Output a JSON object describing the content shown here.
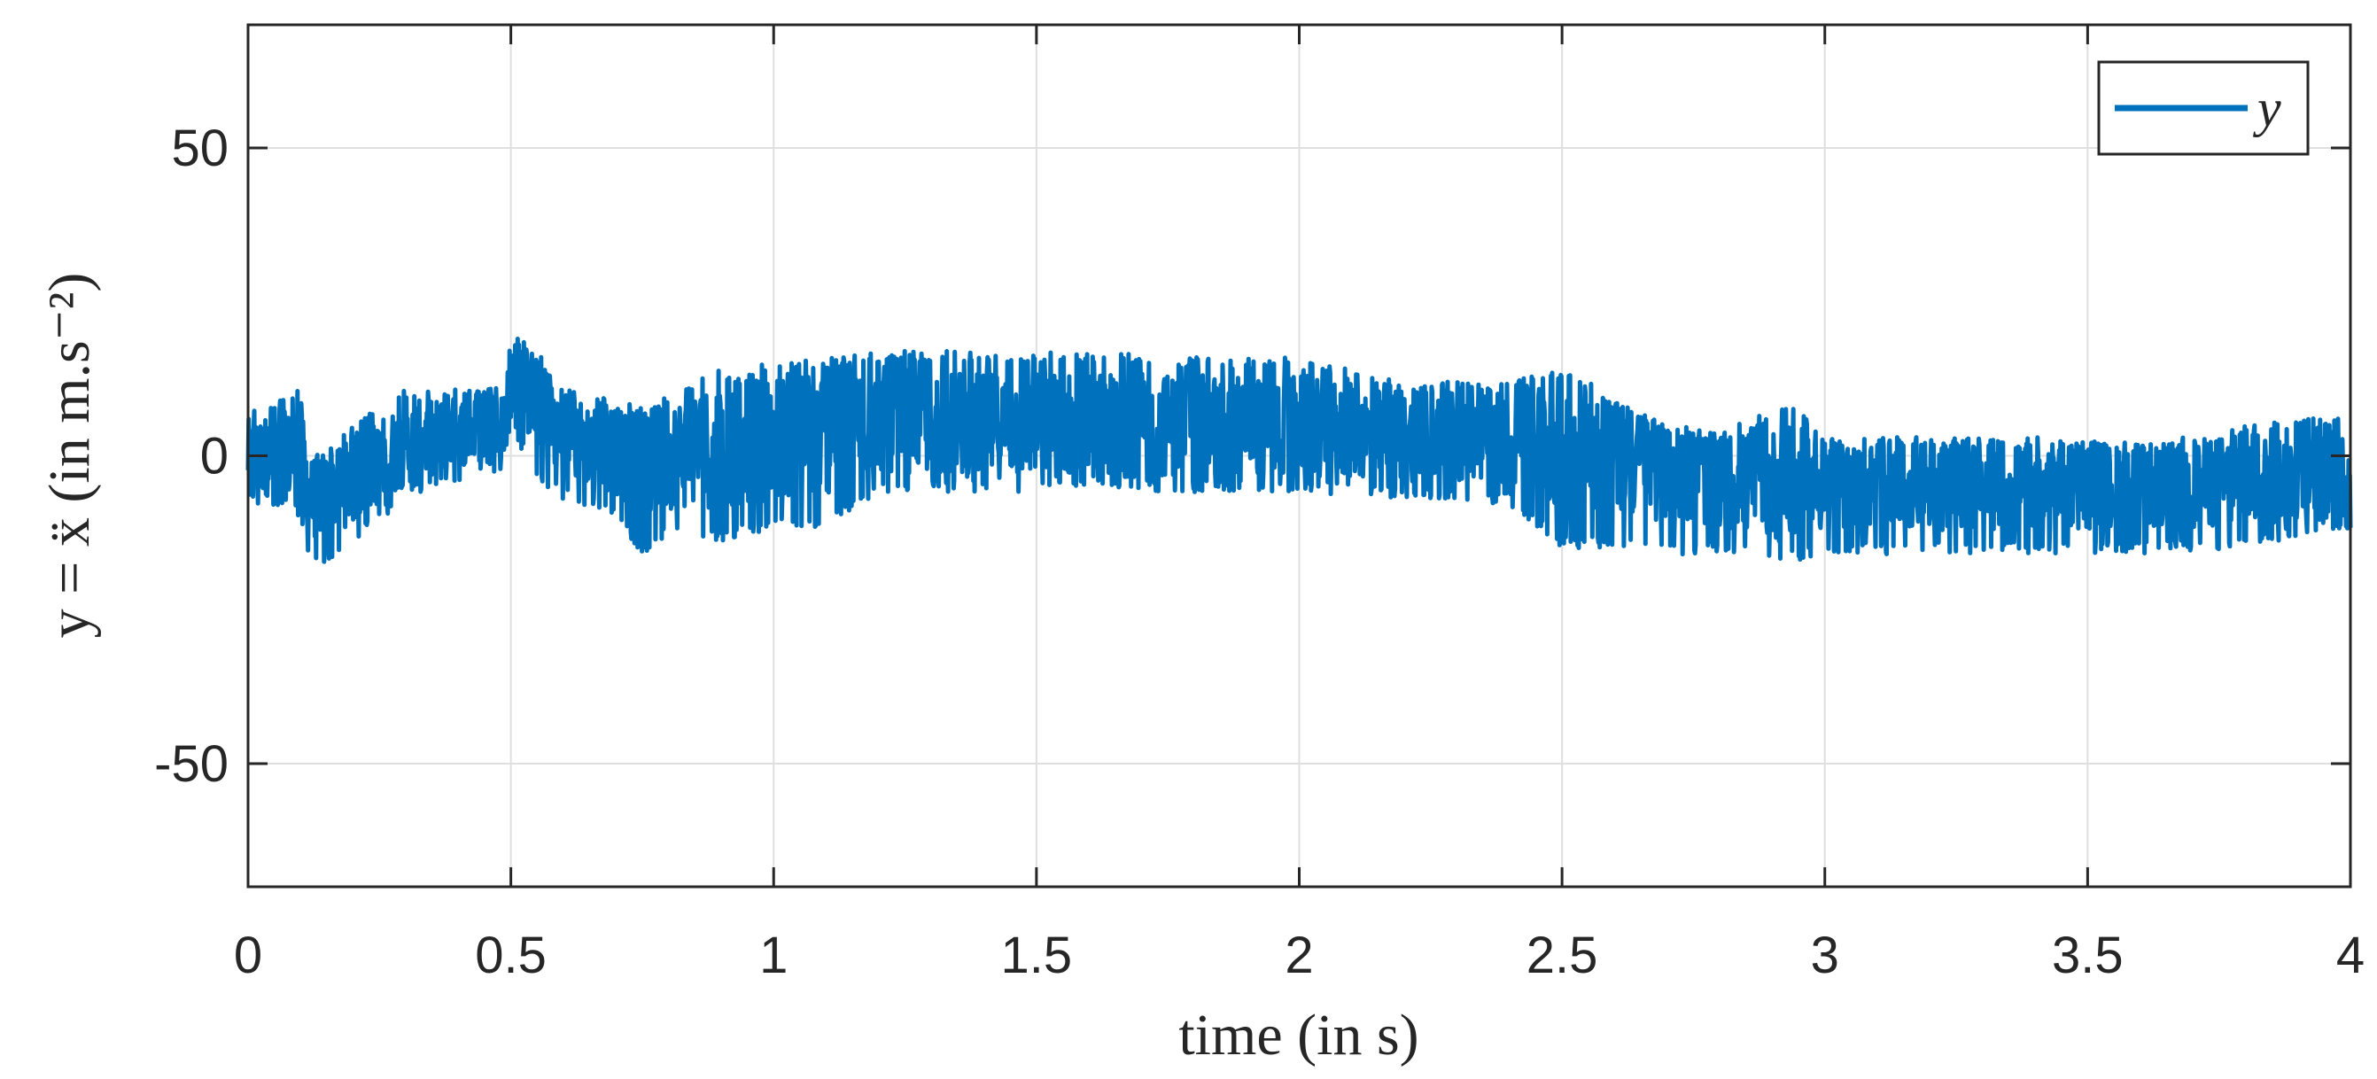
{
  "chart_data": {
    "type": "line",
    "title": "",
    "xlabel": "time (in s)",
    "ylabel": "y = ẍ (in m.s⁻²)",
    "xlim": [
      0,
      4
    ],
    "ylim": [
      -70,
      70
    ],
    "xticks": [
      0,
      0.5,
      1,
      1.5,
      2,
      2.5,
      3,
      3.5,
      4
    ],
    "xtick_labels": [
      "0",
      "0.5",
      "1",
      "1.5",
      "2",
      "2.5",
      "3",
      "3.5",
      "4"
    ],
    "yticks": [
      -50,
      0,
      50
    ],
    "ytick_labels": [
      "-50",
      "0",
      "50"
    ],
    "grid": true,
    "legend_position": "top-right",
    "colors": {
      "series": "#0072bd",
      "grid": "#dfdfdf",
      "axis": "#262626"
    },
    "series": [
      {
        "name": "y",
        "envelope_note": "noisy signal; values give approximate local band",
        "x": [
          0.0,
          0.05,
          0.1,
          0.12,
          0.2,
          0.3,
          0.4,
          0.48,
          0.5,
          0.55,
          0.6,
          0.7,
          0.75,
          0.8,
          0.9,
          1.0,
          1.1,
          1.2,
          1.4,
          1.6,
          1.8,
          2.0,
          2.2,
          2.4,
          2.5,
          2.6,
          2.7,
          2.8,
          2.95,
          3.0,
          3.2,
          3.4,
          3.6,
          3.8,
          4.0
        ],
        "mean": [
          0,
          0,
          0,
          -7,
          -4,
          2,
          4,
          4,
          13,
          9,
          3,
          1,
          -2,
          0,
          2,
          3,
          4,
          6,
          5,
          5,
          5,
          5,
          3,
          3,
          2,
          0,
          -3,
          -4,
          -5,
          -5,
          -5,
          -5,
          -5,
          -4,
          -3
        ],
        "upper": [
          8,
          9,
          11,
          -1,
          5,
          11,
          11,
          11,
          20,
          17,
          11,
          9,
          8,
          10,
          14,
          15,
          16,
          17,
          17,
          17,
          16,
          16,
          12,
          12,
          15,
          9,
          5,
          4,
          9,
          3,
          3,
          3,
          2,
          5,
          7
        ],
        "lower": [
          -8,
          -9,
          -10,
          -19,
          -14,
          -7,
          -4,
          -3,
          5,
          -5,
          -7,
          -10,
          -16,
          -13,
          -14,
          -12,
          -12,
          -6,
          -6,
          -6,
          -6,
          -6,
          -7,
          -8,
          -15,
          -15,
          -16,
          -16,
          -17,
          -16,
          -16,
          -16,
          -16,
          -15,
          -12
        ]
      }
    ]
  }
}
